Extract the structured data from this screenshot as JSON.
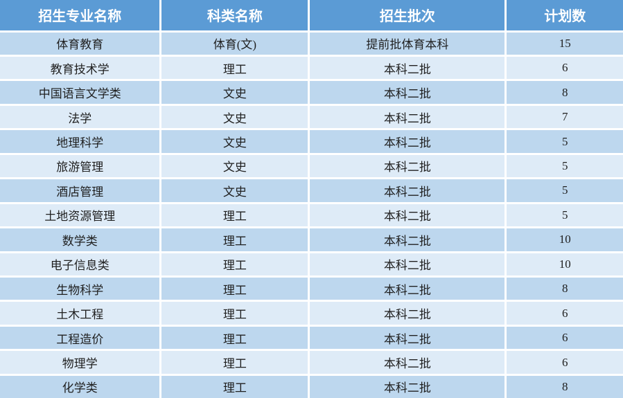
{
  "chart_data": {
    "type": "table",
    "title": "",
    "columns": [
      "招生专业名称",
      "科类名称",
      "招生批次",
      "计划数"
    ],
    "rows": [
      [
        "体育教育",
        "体育(文)",
        "提前批体育本科",
        "15"
      ],
      [
        "教育技术学",
        "理工",
        "本科二批",
        "6"
      ],
      [
        "中国语言文学类",
        "文史",
        "本科二批",
        "8"
      ],
      [
        "法学",
        "文史",
        "本科二批",
        "7"
      ],
      [
        "地理科学",
        "文史",
        "本科二批",
        "5"
      ],
      [
        "旅游管理",
        "文史",
        "本科二批",
        "5"
      ],
      [
        "酒店管理",
        "文史",
        "本科二批",
        "5"
      ],
      [
        "土地资源管理",
        "理工",
        "本科二批",
        "5"
      ],
      [
        "数学类",
        "理工",
        "本科二批",
        "10"
      ],
      [
        "电子信息类",
        "理工",
        "本科二批",
        "10"
      ],
      [
        "生物科学",
        "理工",
        "本科二批",
        "8"
      ],
      [
        "土木工程",
        "理工",
        "本科二批",
        "6"
      ],
      [
        "工程造价",
        "理工",
        "本科二批",
        "6"
      ],
      [
        "物理学",
        "理工",
        "本科二批",
        "6"
      ],
      [
        "化学类",
        "理工",
        "本科二批",
        "8"
      ]
    ]
  },
  "table": {
    "columns": [
      {
        "key": "major",
        "label": "招生专业名称",
        "width": "25.8%"
      },
      {
        "key": "category",
        "label": "科类名称",
        "width": "23.8%"
      },
      {
        "key": "batch",
        "label": "招生批次",
        "width": "31.6%"
      },
      {
        "key": "plan",
        "label": "计划数",
        "width": "18.8%"
      }
    ],
    "rows": [
      {
        "major": "体育教育",
        "category": "体育(文)",
        "batch": "提前批体育本科",
        "plan": "15"
      },
      {
        "major": "教育技术学",
        "category": "理工",
        "batch": "本科二批",
        "plan": "6"
      },
      {
        "major": "中国语言文学类",
        "category": "文史",
        "batch": "本科二批",
        "plan": "8"
      },
      {
        "major": "法学",
        "category": "文史",
        "batch": "本科二批",
        "plan": "7"
      },
      {
        "major": "地理科学",
        "category": "文史",
        "batch": "本科二批",
        "plan": "5"
      },
      {
        "major": "旅游管理",
        "category": "文史",
        "batch": "本科二批",
        "plan": "5"
      },
      {
        "major": "酒店管理",
        "category": "文史",
        "batch": "本科二批",
        "plan": "5"
      },
      {
        "major": "土地资源管理",
        "category": "理工",
        "batch": "本科二批",
        "plan": "5"
      },
      {
        "major": "数学类",
        "category": "理工",
        "batch": "本科二批",
        "plan": "10"
      },
      {
        "major": "电子信息类",
        "category": "理工",
        "batch": "本科二批",
        "plan": "10"
      },
      {
        "major": "生物科学",
        "category": "理工",
        "batch": "本科二批",
        "plan": "8"
      },
      {
        "major": "土木工程",
        "category": "理工",
        "batch": "本科二批",
        "plan": "6"
      },
      {
        "major": "工程造价",
        "category": "理工",
        "batch": "本科二批",
        "plan": "6"
      },
      {
        "major": "物理学",
        "category": "理工",
        "batch": "本科二批",
        "plan": "6"
      },
      {
        "major": "化学类",
        "category": "理工",
        "batch": "本科二批",
        "plan": "8"
      }
    ]
  },
  "colors": {
    "header_bg": "#5B9BD5",
    "header_text": "#FFFFFF",
    "row_odd_bg": "#BDD7EE",
    "row_even_bg": "#DEEBF7",
    "body_text": "#1F1F1F",
    "divider": "#FFFFFF"
  }
}
